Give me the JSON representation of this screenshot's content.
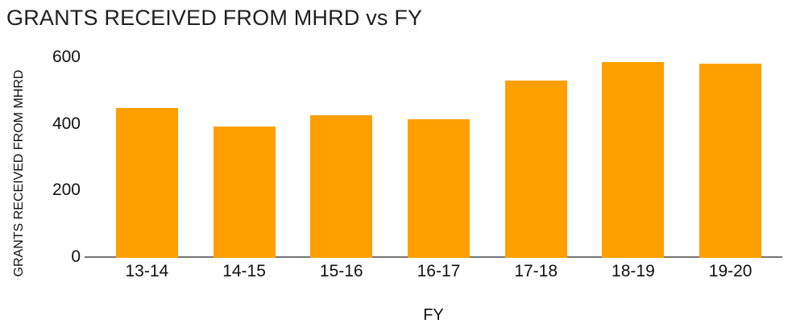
{
  "chart_data": {
    "type": "bar",
    "title": "GRANTS RECEIVED FROM MHRD vs FY",
    "xlabel": "FY",
    "ylabel": "GRANTS RECEIVED FROM MHRD",
    "categories": [
      "13-14",
      "14-15",
      "15-16",
      "16-17",
      "17-18",
      "18-19",
      "19-20"
    ],
    "values": [
      447,
      391,
      427,
      413,
      530,
      585,
      581
    ],
    "yticks": [
      0,
      200,
      400,
      600
    ],
    "ylim": [
      0,
      620
    ],
    "grid": false,
    "legend": "none",
    "bar_color": "#ff9f00",
    "axis_line_color": "#757575",
    "text_color": "#111111",
    "title_color": "#1f1f1f",
    "background_color": "#ffffff"
  }
}
